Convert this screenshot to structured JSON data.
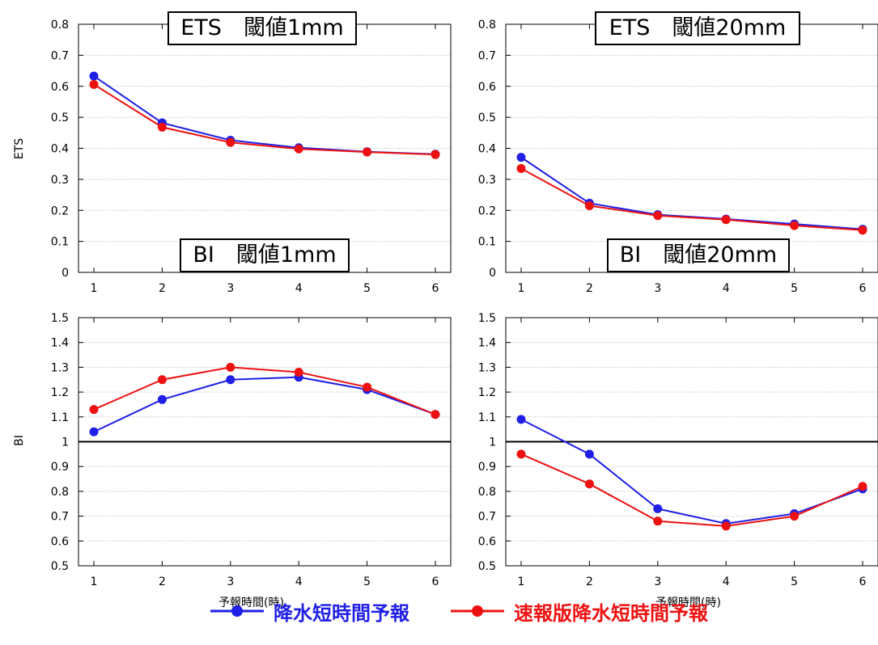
{
  "colors": {
    "series1": "#1f1fe6",
    "series2": "#ee1111",
    "reference": "#000000"
  },
  "legend": [
    {
      "name": "降水短時間予報",
      "color": "#1f1fe6"
    },
    {
      "name": "速報版降水短時間予報",
      "color": "#ee1111"
    }
  ],
  "chart_data": [
    {
      "type": "line",
      "title": "ETS　閾値1mm",
      "ylabel": "ETS",
      "xlabel": "",
      "x": [
        1,
        2,
        3,
        4,
        5,
        6
      ],
      "ylim": [
        0,
        0.8
      ],
      "yticks": [
        "0",
        "0.1",
        "0.2",
        "0.3",
        "0.4",
        "0.5",
        "0.6",
        "0.7",
        "0.8"
      ],
      "xticks": [
        "1",
        "2",
        "3",
        "4",
        "5",
        "6"
      ],
      "grid": "horizontal",
      "series": [
        {
          "name": "降水短時間予報",
          "values": [
            0.633,
            0.482,
            0.426,
            0.402,
            0.389,
            0.381
          ]
        },
        {
          "name": "速報版降水短時間予報",
          "values": [
            0.606,
            0.468,
            0.419,
            0.398,
            0.388,
            0.38
          ]
        }
      ]
    },
    {
      "type": "line",
      "title": "ETS　閾値20mm",
      "ylabel": "",
      "xlabel": "",
      "x": [
        1,
        2,
        3,
        4,
        5,
        6
      ],
      "ylim": [
        0,
        0.8
      ],
      "yticks": [
        "0",
        "0.1",
        "0.2",
        "0.3",
        "0.4",
        "0.5",
        "0.6",
        "0.7",
        "0.8"
      ],
      "xticks": [
        "1",
        "2",
        "3",
        "4",
        "5",
        "6"
      ],
      "grid": "horizontal",
      "series": [
        {
          "name": "降水短時間予報",
          "values": [
            0.371,
            0.223,
            0.186,
            0.172,
            0.156,
            0.139
          ]
        },
        {
          "name": "速報版降水短時間予報",
          "values": [
            0.335,
            0.215,
            0.183,
            0.17,
            0.151,
            0.136
          ]
        }
      ]
    },
    {
      "type": "line",
      "title": "BI　閾値1mm",
      "ylabel": "BI",
      "xlabel": "予報時間(時)",
      "x": [
        1,
        2,
        3,
        4,
        5,
        6
      ],
      "ylim": [
        0.5,
        1.5
      ],
      "yticks": [
        "0.5",
        "0.6",
        "0.7",
        "0.8",
        "0.9",
        "1",
        "1.1",
        "1.2",
        "1.3",
        "1.4",
        "1.5"
      ],
      "xticks": [
        "1",
        "2",
        "3",
        "4",
        "5",
        "6"
      ],
      "grid": "horizontal",
      "reference_line": 1,
      "series": [
        {
          "name": "降水短時間予報",
          "values": [
            1.04,
            1.17,
            1.25,
            1.26,
            1.21,
            1.11
          ]
        },
        {
          "name": "速報版降水短時間予報",
          "values": [
            1.13,
            1.25,
            1.3,
            1.28,
            1.22,
            1.11
          ]
        }
      ]
    },
    {
      "type": "line",
      "title": "BI　閾値20mm",
      "ylabel": "",
      "xlabel": "予報時間(時)",
      "x": [
        1,
        2,
        3,
        4,
        5,
        6
      ],
      "ylim": [
        0.5,
        1.5
      ],
      "yticks": [
        "0.5",
        "0.6",
        "0.7",
        "0.8",
        "0.9",
        "1",
        "1.1",
        "1.2",
        "1.3",
        "1.4",
        "1.5"
      ],
      "xticks": [
        "1",
        "2",
        "3",
        "4",
        "5",
        "6"
      ],
      "grid": "horizontal",
      "reference_line": 1,
      "series": [
        {
          "name": "降水短時間予報",
          "values": [
            1.09,
            0.95,
            0.73,
            0.67,
            0.71,
            0.81
          ]
        },
        {
          "name": "速報版降水短時間予報",
          "values": [
            0.95,
            0.83,
            0.68,
            0.66,
            0.7,
            0.82
          ]
        }
      ]
    }
  ]
}
